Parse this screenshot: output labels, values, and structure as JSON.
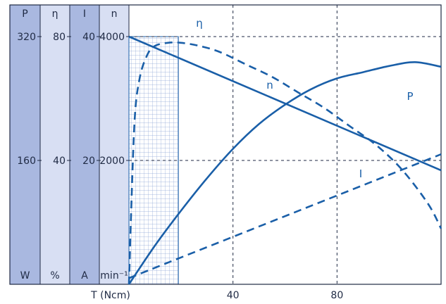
{
  "chart_data": {
    "type": "line",
    "title": "",
    "xlabel": "T (Ncm)",
    "x_ticks": [
      40,
      80
    ],
    "xlim": [
      0,
      120
    ],
    "axes": [
      {
        "name": "P",
        "unit": "W",
        "ticks": [
          "320",
          "160"
        ],
        "range": [
          0,
          320
        ]
      },
      {
        "name": "η",
        "unit": "%",
        "ticks": [
          "80",
          "40"
        ],
        "range": [
          0,
          80
        ]
      },
      {
        "name": "I",
        "unit": "A",
        "ticks": [
          "40",
          "20"
        ],
        "range": [
          0,
          40
        ]
      },
      {
        "name": "n",
        "unit": "min⁻¹",
        "ticks": [
          "4000",
          "2000"
        ],
        "range": [
          0,
          4000
        ]
      }
    ],
    "highlight_region": {
      "x_from": 0,
      "x_to": 19,
      "pattern": "grid"
    },
    "grid": "dashed",
    "series": [
      {
        "name": "n",
        "axis": "n",
        "style": "solid",
        "x": [
          0,
          120
        ],
        "y": [
          4000,
          1840
        ]
      },
      {
        "name": "P",
        "axis": "P",
        "style": "solid",
        "x": [
          0,
          10,
          20,
          30,
          40,
          50,
          60,
          70,
          80,
          90,
          100,
          110,
          120
        ],
        "y": [
          0,
          50,
          95,
          137,
          175,
          207,
          232,
          252,
          266,
          274,
          282,
          287,
          281
        ]
      },
      {
        "name": "η",
        "axis": "η",
        "style": "dashed",
        "x": [
          0,
          2,
          4,
          7,
          10,
          15,
          20,
          27,
          35,
          45,
          55,
          65,
          75,
          85,
          95,
          105,
          115,
          120
        ],
        "y": [
          0,
          50,
          66,
          74,
          77,
          78,
          78,
          77,
          75,
          71,
          67,
          62,
          57,
          51,
          45,
          37,
          26,
          18
        ]
      },
      {
        "name": "I",
        "axis": "I",
        "style": "dashed",
        "x": [
          0,
          120
        ],
        "y": [
          1,
          21
        ]
      }
    ],
    "colors": {
      "line": "#1a5fa8",
      "band_dark": "#a9b8e0",
      "band_light": "#d8dff3",
      "frame": "#1f2a44"
    }
  }
}
